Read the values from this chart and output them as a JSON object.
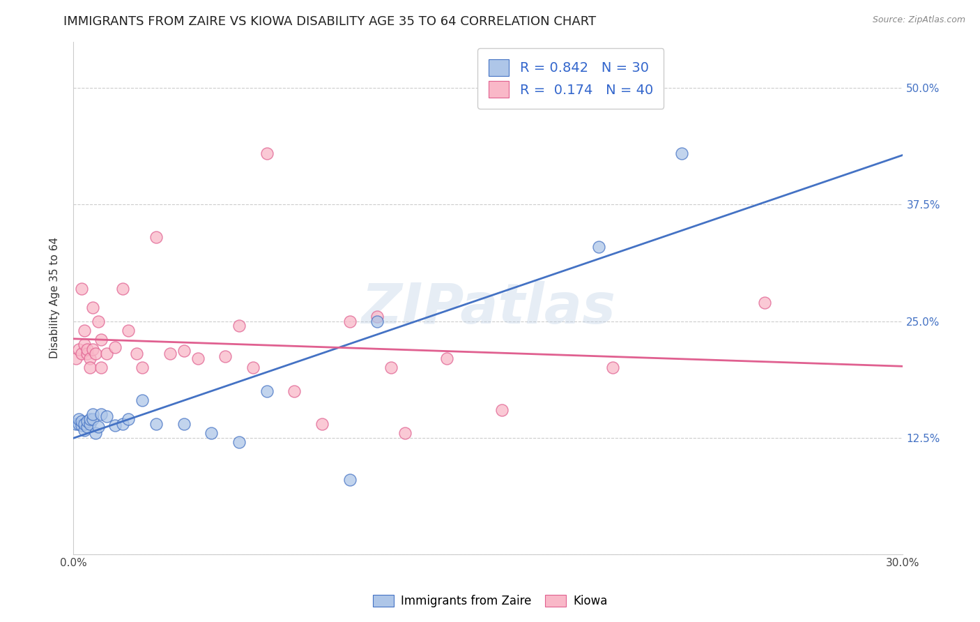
{
  "title": "IMMIGRANTS FROM ZAIRE VS KIOWA DISABILITY AGE 35 TO 64 CORRELATION CHART",
  "source": "Source: ZipAtlas.com",
  "ylabel": "Disability Age 35 to 64",
  "xlabel": "",
  "xlim": [
    0.0,
    0.3
  ],
  "ylim": [
    0.0,
    0.55
  ],
  "xticks": [
    0.0,
    0.05,
    0.1,
    0.15,
    0.2,
    0.25,
    0.3
  ],
  "yticks": [
    0.0,
    0.125,
    0.25,
    0.375,
    0.5
  ],
  "blue_R": 0.842,
  "blue_N": 30,
  "pink_R": 0.174,
  "pink_N": 40,
  "blue_color": "#aec6e8",
  "pink_color": "#f9b8c8",
  "blue_line_color": "#4472c4",
  "pink_line_color": "#e06090",
  "blue_scatter_x": [
    0.001,
    0.002,
    0.002,
    0.003,
    0.003,
    0.004,
    0.004,
    0.005,
    0.005,
    0.006,
    0.006,
    0.007,
    0.007,
    0.008,
    0.009,
    0.01,
    0.012,
    0.015,
    0.018,
    0.02,
    0.025,
    0.03,
    0.04,
    0.05,
    0.06,
    0.07,
    0.1,
    0.11,
    0.19,
    0.22
  ],
  "blue_scatter_y": [
    0.14,
    0.14,
    0.145,
    0.138,
    0.143,
    0.133,
    0.14,
    0.137,
    0.143,
    0.14,
    0.145,
    0.145,
    0.15,
    0.13,
    0.137,
    0.15,
    0.148,
    0.138,
    0.14,
    0.145,
    0.165,
    0.14,
    0.14,
    0.13,
    0.12,
    0.175,
    0.08,
    0.25,
    0.33,
    0.43
  ],
  "pink_scatter_x": [
    0.001,
    0.002,
    0.003,
    0.003,
    0.004,
    0.004,
    0.005,
    0.005,
    0.006,
    0.006,
    0.007,
    0.007,
    0.008,
    0.009,
    0.01,
    0.01,
    0.012,
    0.015,
    0.018,
    0.02,
    0.023,
    0.025,
    0.03,
    0.035,
    0.04,
    0.045,
    0.055,
    0.06,
    0.065,
    0.07,
    0.08,
    0.09,
    0.1,
    0.11,
    0.115,
    0.12,
    0.135,
    0.155,
    0.195,
    0.25
  ],
  "pink_scatter_y": [
    0.21,
    0.22,
    0.215,
    0.285,
    0.225,
    0.24,
    0.215,
    0.22,
    0.21,
    0.2,
    0.22,
    0.265,
    0.215,
    0.25,
    0.2,
    0.23,
    0.215,
    0.222,
    0.285,
    0.24,
    0.215,
    0.2,
    0.34,
    0.215,
    0.218,
    0.21,
    0.212,
    0.245,
    0.2,
    0.43,
    0.175,
    0.14,
    0.25,
    0.255,
    0.2,
    0.13,
    0.21,
    0.155,
    0.2,
    0.27
  ],
  "watermark": "ZIPatlas",
  "legend_label_blue": "Immigrants from Zaire",
  "legend_label_pink": "Kiowa",
  "title_fontsize": 13,
  "label_fontsize": 11,
  "tick_fontsize": 11,
  "legend_text_color": "#222222",
  "legend_num_color": "#3366cc"
}
